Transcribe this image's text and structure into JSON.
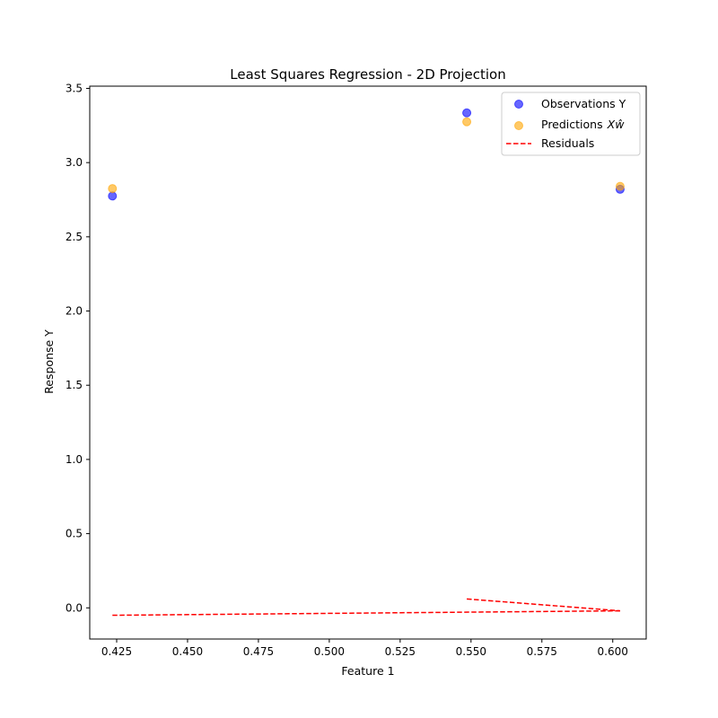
{
  "chart_data": {
    "type": "scatter",
    "title": "Least Squares Regression - 2D Projection",
    "xlabel": "Feature 1",
    "ylabel": "Response Y",
    "xlim": [
      0.4155,
      0.6118
    ],
    "ylim": [
      -0.21,
      3.515
    ],
    "xticks": [
      0.425,
      0.45,
      0.475,
      0.5,
      0.525,
      0.55,
      0.575,
      0.6
    ],
    "xtick_labels": [
      "0.425",
      "0.450",
      "0.475",
      "0.500",
      "0.525",
      "0.550",
      "0.575",
      "0.600"
    ],
    "yticks": [
      0.0,
      0.5,
      1.0,
      1.5,
      2.0,
      2.5,
      3.0,
      3.5
    ],
    "ytick_labels": [
      "0.0",
      "0.5",
      "1.0",
      "1.5",
      "2.0",
      "2.5",
      "3.0",
      "3.5"
    ],
    "grid": false,
    "legend_position": "top-right",
    "series": [
      {
        "name": "Observations Y",
        "kind": "scatter",
        "color": "#0000ff",
        "points": [
          {
            "x": 0.4235,
            "y": 2.775
          },
          {
            "x": 0.5485,
            "y": 3.335
          },
          {
            "x": 0.6026,
            "y": 2.82
          }
        ]
      },
      {
        "name": "Predictions",
        "legend_math": "Xŵ",
        "kind": "scatter",
        "color": "#ffa500",
        "points": [
          {
            "x": 0.4235,
            "y": 2.825
          },
          {
            "x": 0.5485,
            "y": 3.275
          },
          {
            "x": 0.6026,
            "y": 2.84
          }
        ]
      },
      {
        "name": "Residuals",
        "kind": "dashed-line",
        "color": "#ff0000",
        "segments": [
          [
            {
              "x": 0.4235,
              "y": -0.05
            },
            {
              "x": 0.6026,
              "y": -0.02
            }
          ],
          [
            {
              "x": 0.5485,
              "y": 0.06
            },
            {
              "x": 0.6026,
              "y": -0.02
            }
          ]
        ]
      }
    ]
  }
}
